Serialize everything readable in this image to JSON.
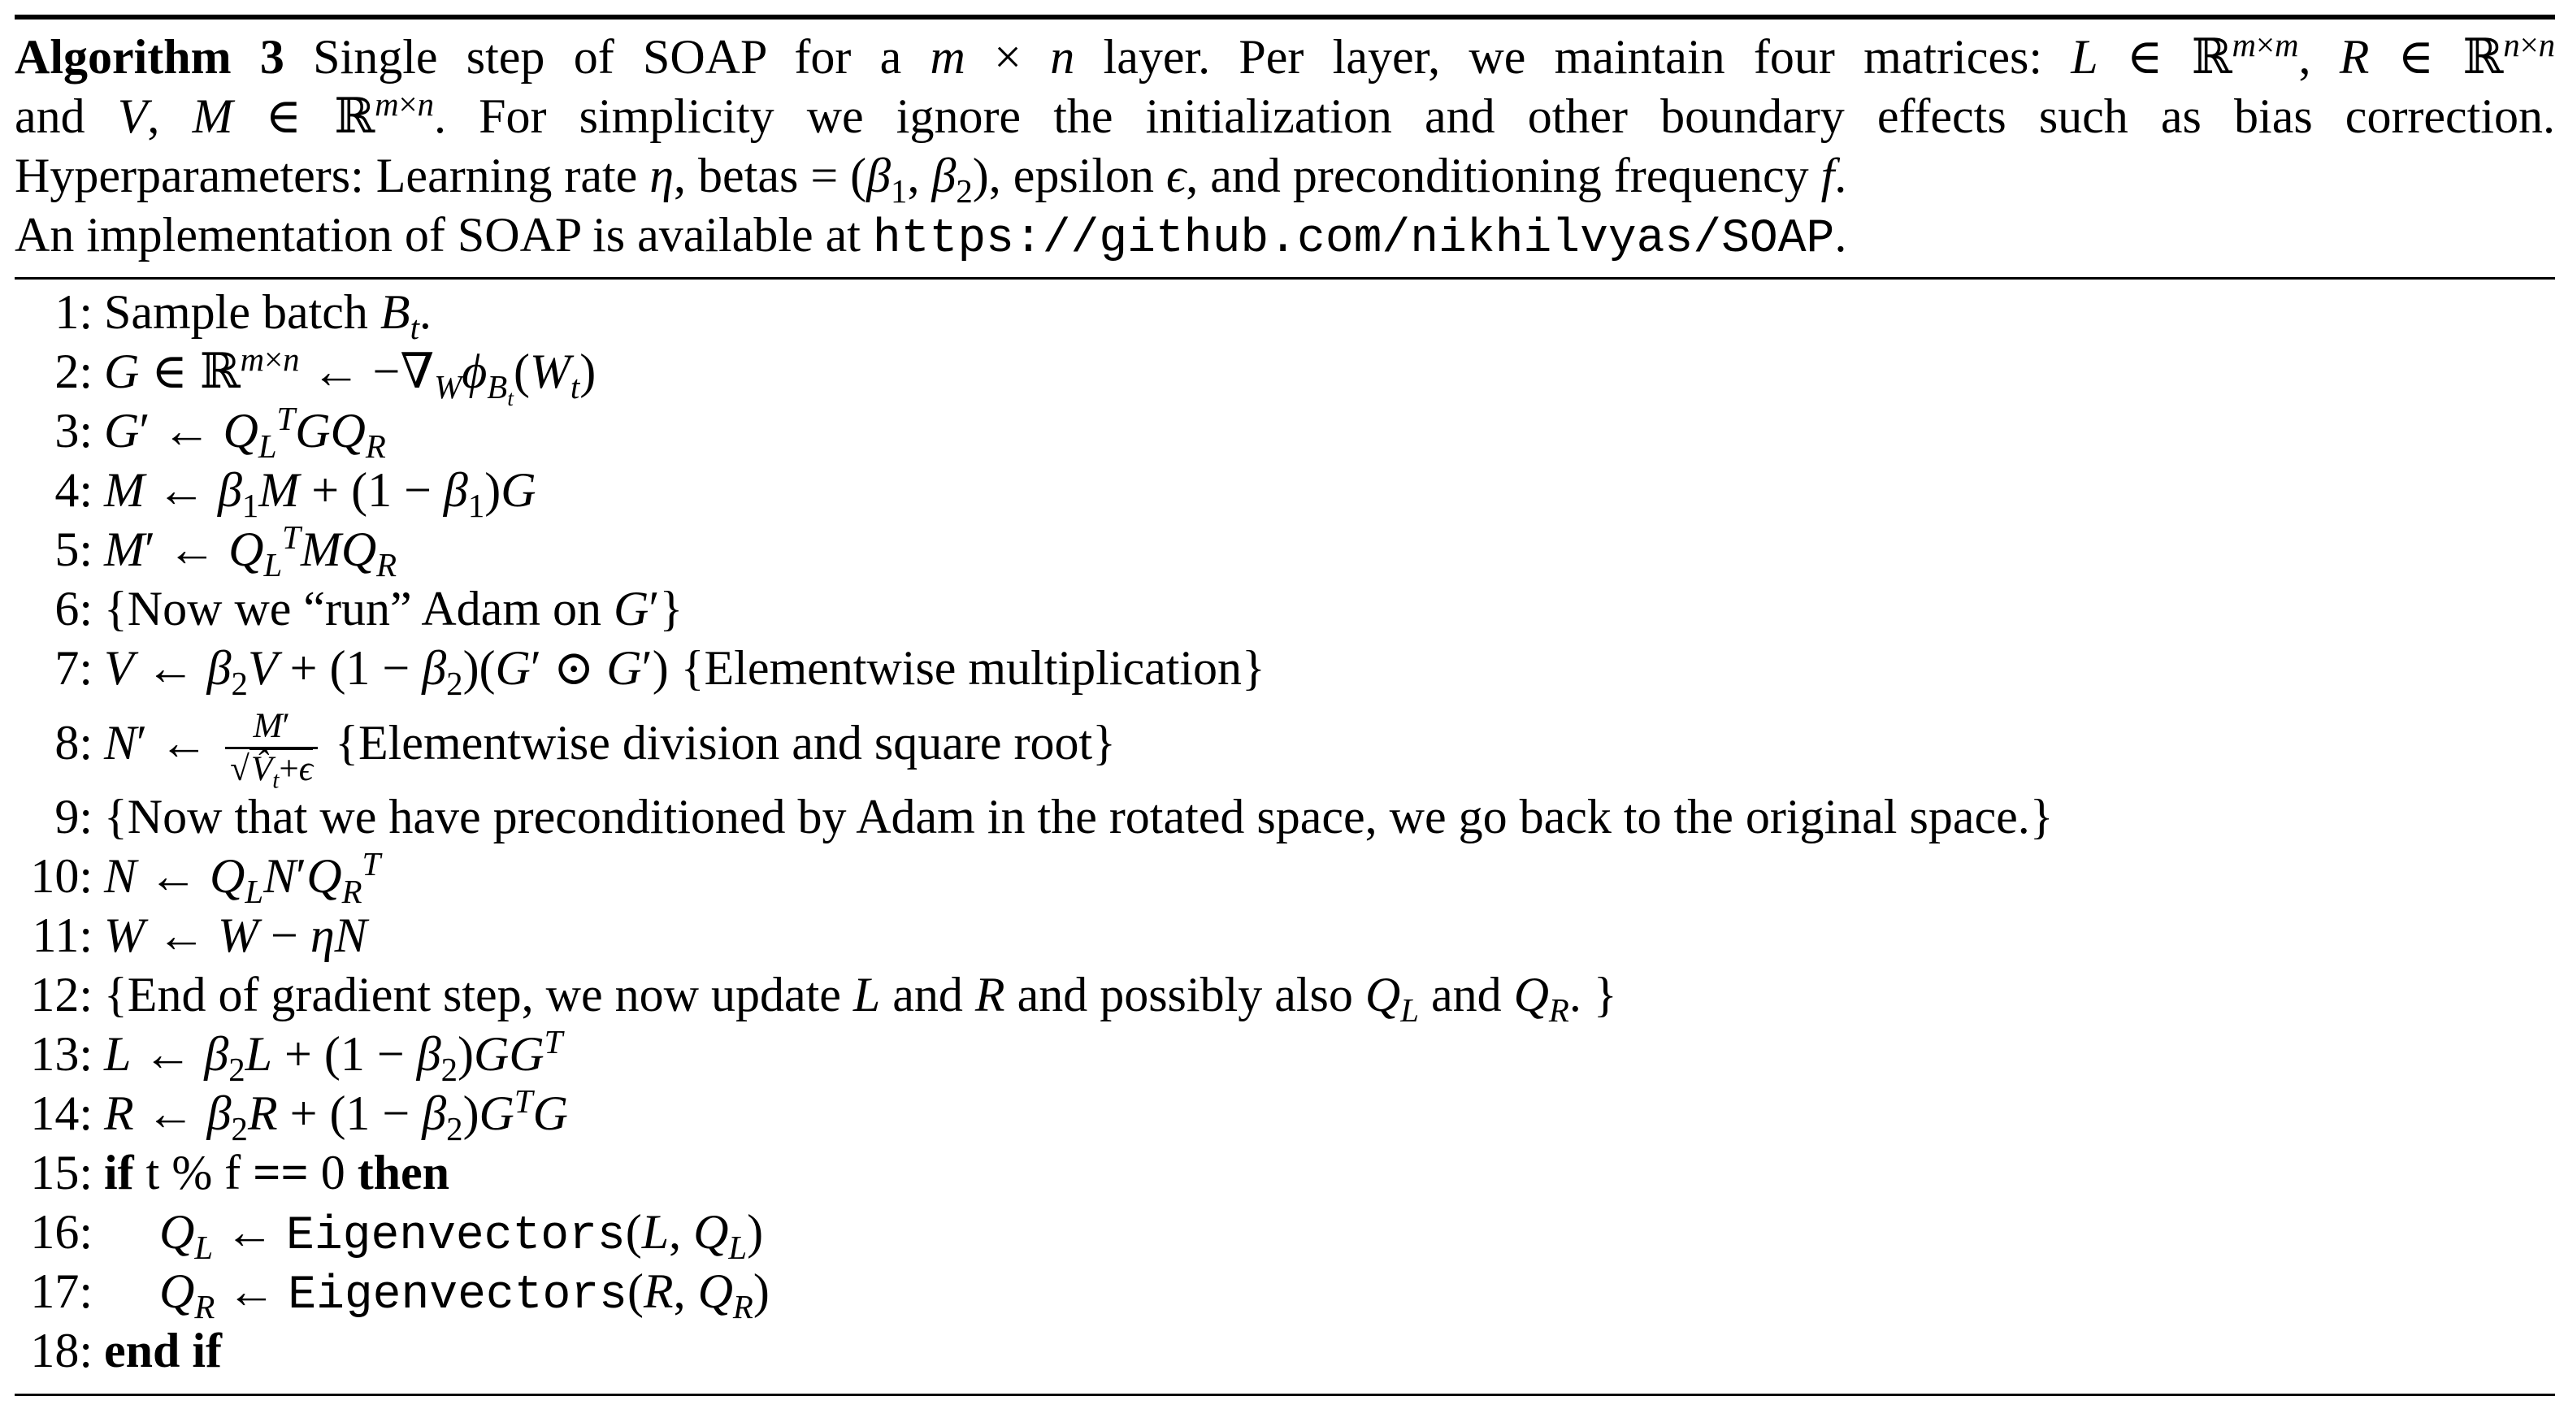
{
  "caption": {
    "label": "Algorithm 3",
    "line1": " Single step of SOAP for a m × n layer. Per layer, we maintain four matrices: L ∈ ℝ^{m×m}, R ∈ ℝ^{n×n}",
    "line2": "and V, M ∈ ℝ^{m×n}. For simplicity we ignore the initialization and other boundary effects such as bias correction.",
    "line3": "Hyperparameters: Learning rate η, betas = (β₁, β₂), epsilon ϵ, and preconditioning frequency f.",
    "line4_text": "An implementation of SOAP is available at ",
    "line4_link": "https://github.com/nikhilvyas/SOAP",
    "line4_end": "."
  },
  "steps": [
    {
      "num": "1:",
      "text": "Sample batch Bₜ."
    },
    {
      "num": "2:",
      "text": "G ∈ ℝ^{m×n} ← −∇_W φ_{Bₜ}(Wₜ)"
    },
    {
      "num": "3:",
      "text": "G′ ← Q_L^T G Q_R"
    },
    {
      "num": "4:",
      "text": "M ← β₁M + (1 − β₁)G"
    },
    {
      "num": "5:",
      "text": "M′ ← Q_L^T M Q_R"
    },
    {
      "num": "6:",
      "text": "{Now we “run” Adam on G′}"
    },
    {
      "num": "7:",
      "text": "V ← β₂V + (1 − β₂)(G′ ⊙ G′) {Elementwise multiplication}"
    },
    {
      "num": "8:",
      "text": "N′ ← M′ / √(V̂ₜ + ϵ) {Elementwise division and square root}"
    },
    {
      "num": "9:",
      "text": "{Now that we have preconditioned by Adam in the rotated space, we go back to the original space.}"
    },
    {
      "num": "10:",
      "text": "N ← Q_L N′ Q_R^T"
    },
    {
      "num": "11:",
      "text": "W ← W − ηN"
    },
    {
      "num": "12:",
      "text": "{End of gradient step, we now update L and R and possibly also Q_L and Q_R. }"
    },
    {
      "num": "13:",
      "text": "L ← β₂L + (1 − β₂)GG^T"
    },
    {
      "num": "14:",
      "text": "R ← β₂R + (1 − β₂)G^T G"
    },
    {
      "num": "15:",
      "text": "if t % f == 0 then"
    },
    {
      "num": "16:",
      "text": "Q_L ← Eigenvectors(L, Q_L)"
    },
    {
      "num": "17:",
      "text": "Q_R ← Eigenvectors(R, Q_R)"
    },
    {
      "num": "18:",
      "text": "end if"
    }
  ]
}
